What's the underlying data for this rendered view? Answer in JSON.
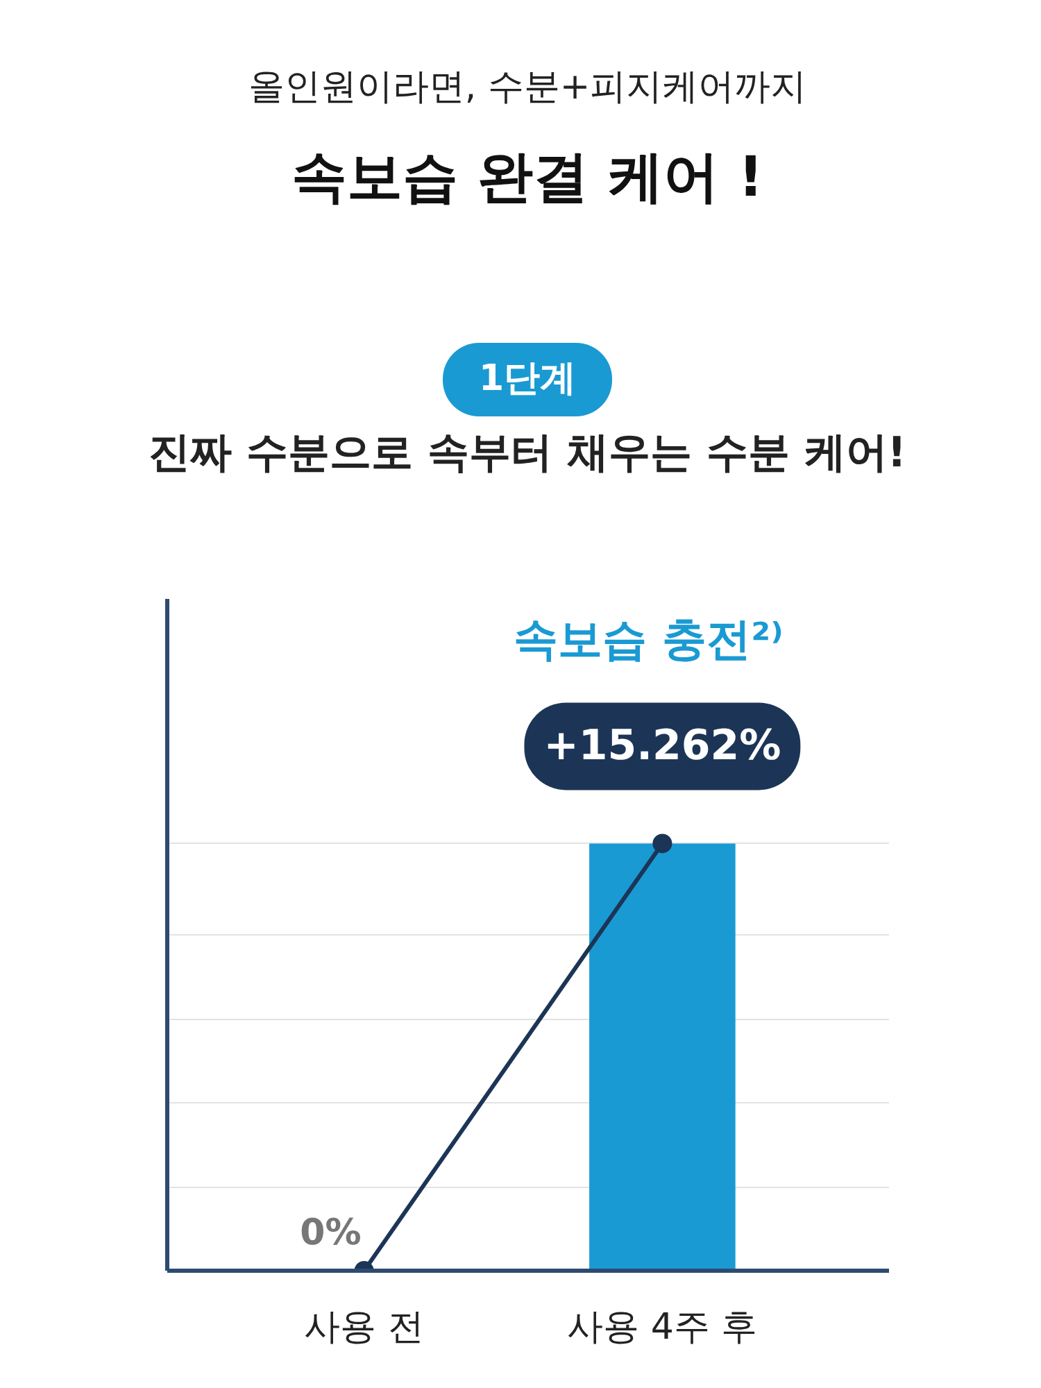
{
  "chart_data": {
    "type": "bar",
    "subtitle": "올인원이라면, 수분+피지케어까지",
    "title": "속보습 완결 케어 !",
    "annotations": [
      "1단계",
      "진짜 수분으로 속부터 채우는 수분 케어!",
      "속보습 충전²⁾"
    ],
    "categories": [
      "사용 전",
      "사용 4주 후"
    ],
    "series": [
      {
        "color": "#1a9ad3",
        "values": [
          null,
          15.262
        ]
      },
      {
        "type": "line",
        "color": "#1c3557",
        "values": [
          0,
          15.262
        ],
        "value_labels": [
          "0%",
          "+15.262%"
        ]
      }
    ],
    "marker": "circle",
    "ylim": [
      0,
      24
    ],
    "yticks": [
      {
        "value": 3,
        "label": null
      },
      {
        "value": 6,
        "label": null
      },
      {
        "value": 9,
        "label": null
      },
      {
        "value": 12,
        "label": null
      },
      {
        "value": 15.262,
        "label": null
      }
    ],
    "grid": "y",
    "tick_labels": "x"
  }
}
